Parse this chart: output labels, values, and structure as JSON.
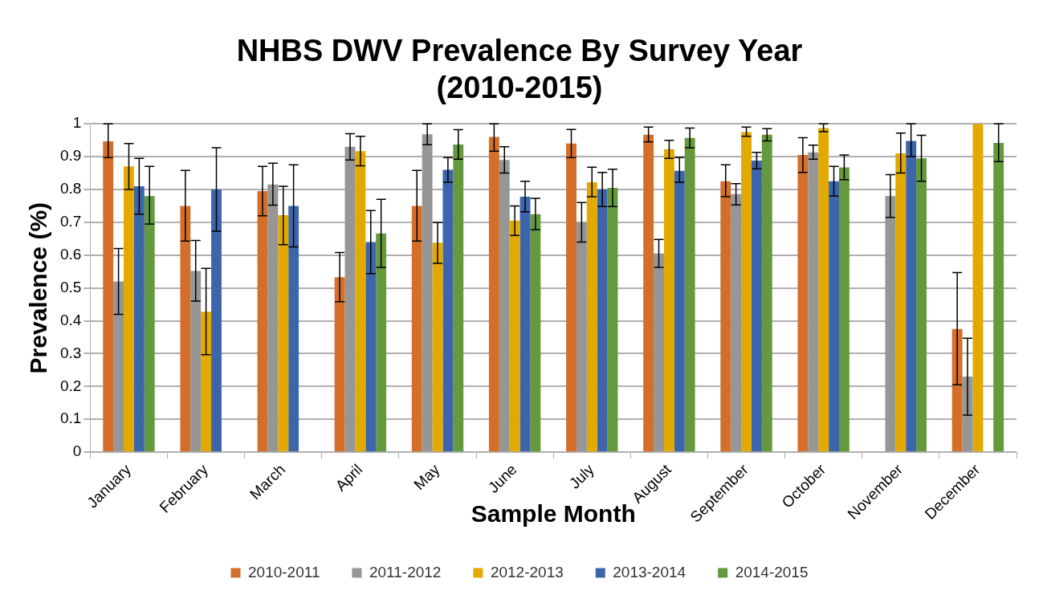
{
  "chart_data": {
    "type": "bar",
    "title": [
      "NHBS DWV Prevalence By Survey Year",
      "(2010-2015)"
    ],
    "xlabel": "Sample Month",
    "ylabel": "Prevalence (%)",
    "categories": [
      "January",
      "February",
      "March",
      "April",
      "May",
      "June",
      "July",
      "August",
      "September",
      "October",
      "November",
      "December"
    ],
    "ylim": [
      0,
      1
    ],
    "yticks": [
      0,
      0.1,
      0.2,
      0.3,
      0.4,
      0.5,
      0.6,
      0.7,
      0.8,
      0.9,
      1
    ],
    "grid": "y",
    "legend": "bottom",
    "series": [
      {
        "name": "2010-2011",
        "color": "#d46f2b",
        "values": [
          0.947,
          0.75,
          0.795,
          0.533,
          0.75,
          0.96,
          0.94,
          0.967,
          0.825,
          0.905,
          null,
          0.375
        ],
        "errors": [
          [
            0.897,
            1.0
          ],
          [
            0.643,
            0.858
          ],
          [
            0.72,
            0.87
          ],
          [
            0.458,
            0.608
          ],
          [
            0.643,
            0.858
          ],
          [
            0.917,
            1.0
          ],
          [
            0.897,
            0.983
          ],
          [
            0.945,
            0.99
          ],
          [
            0.778,
            0.875
          ],
          [
            0.852,
            0.958
          ],
          null,
          [
            0.205,
            0.547
          ]
        ]
      },
      {
        "name": "2011-2012",
        "color": "#969696",
        "values": [
          0.52,
          0.552,
          0.815,
          0.93,
          0.968,
          0.89,
          0.7,
          0.605,
          0.786,
          0.913,
          0.78,
          0.23
        ],
        "errors": [
          [
            0.42,
            0.62
          ],
          [
            0.46,
            0.645
          ],
          [
            0.752,
            0.88
          ],
          [
            0.89,
            0.97
          ],
          [
            0.936,
            1.0
          ],
          [
            0.85,
            0.93
          ],
          [
            0.64,
            0.76
          ],
          [
            0.563,
            0.648
          ],
          [
            0.753,
            0.818
          ],
          [
            0.892,
            0.935
          ],
          [
            0.715,
            0.845
          ],
          [
            0.113,
            0.347
          ]
        ]
      },
      {
        "name": "2012-2013",
        "color": "#e2a900",
        "values": [
          0.87,
          0.428,
          0.722,
          0.917,
          0.638,
          0.705,
          0.822,
          0.923,
          0.975,
          0.987,
          0.91,
          1.0
        ],
        "errors": [
          [
            0.8,
            0.94
          ],
          [
            0.297,
            0.56
          ],
          [
            0.632,
            0.81
          ],
          [
            0.872,
            0.962
          ],
          [
            0.575,
            0.7
          ],
          [
            0.66,
            0.75
          ],
          [
            0.778,
            0.868
          ],
          [
            0.895,
            0.95
          ],
          [
            0.962,
            0.99
          ],
          [
            0.976,
            1.0
          ],
          [
            0.85,
            0.972
          ],
          null
        ]
      },
      {
        "name": "2013-2014",
        "color": "#3d65ab",
        "values": [
          0.81,
          0.8,
          0.75,
          0.64,
          0.86,
          0.778,
          0.8,
          0.857,
          0.888,
          0.825,
          0.948,
          null
        ],
        "errors": [
          [
            0.725,
            0.895
          ],
          [
            0.673,
            0.927
          ],
          [
            0.625,
            0.875
          ],
          [
            0.544,
            0.736
          ],
          [
            0.822,
            0.897
          ],
          [
            0.732,
            0.825
          ],
          [
            0.748,
            0.852
          ],
          [
            0.822,
            0.897
          ],
          [
            0.863,
            0.913
          ],
          [
            0.78,
            0.87
          ],
          [
            0.9,
            1.0
          ],
          null
        ]
      },
      {
        "name": "2014-2015",
        "color": "#64993e",
        "values": [
          0.78,
          null,
          null,
          0.666,
          0.937,
          0.725,
          0.805,
          0.957,
          0.967,
          0.867,
          0.895,
          0.942
        ],
        "errors": [
          [
            0.695,
            0.87
          ],
          null,
          null,
          [
            0.563,
            0.77
          ],
          [
            0.892,
            0.982
          ],
          [
            0.678,
            0.773
          ],
          [
            0.748,
            0.862
          ],
          [
            0.927,
            0.987
          ],
          [
            0.948,
            0.985
          ],
          [
            0.83,
            0.905
          ],
          [
            0.825,
            0.965
          ],
          [
            0.885,
            1.0
          ]
        ]
      }
    ]
  }
}
